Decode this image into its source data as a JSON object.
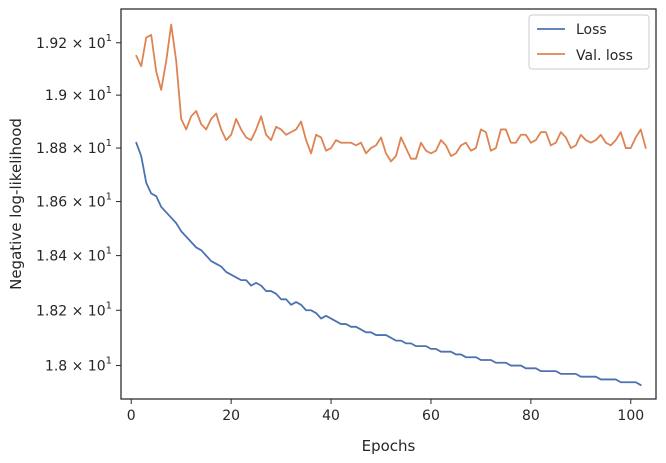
{
  "chart_data": {
    "type": "line",
    "title": "",
    "xlabel": "Epochs",
    "ylabel": "Negative log-likelihood",
    "xlim": [
      -2.05,
      105.05
    ],
    "ylim": [
      17.88,
      19.33
    ],
    "yscale": "log",
    "grid": false,
    "legend_position": "top-right",
    "x_ticks": [
      0,
      20,
      40,
      60,
      80,
      100
    ],
    "x_tick_labels": [
      "0",
      "20",
      "40",
      "60",
      "80",
      "100"
    ],
    "y_ticks": [
      18.0,
      18.2,
      18.4,
      18.6,
      18.8,
      19.0,
      19.2
    ],
    "y_tick_labels": [
      {
        "mantissa": "1.8",
        "exp": "1"
      },
      {
        "mantissa": "1.82",
        "exp": "1"
      },
      {
        "mantissa": "1.84",
        "exp": "1"
      },
      {
        "mantissa": "1.86",
        "exp": "1"
      },
      {
        "mantissa": "1.88",
        "exp": "1"
      },
      {
        "mantissa": "1.9",
        "exp": "1"
      },
      {
        "mantissa": "1.92",
        "exp": "1"
      }
    ],
    "y_tick_times": "×",
    "y_tick_base": "10",
    "series": [
      {
        "name": "Loss",
        "color": "#4c72b0",
        "x_start": 1,
        "x_step": 1,
        "values": [
          18.82,
          18.77,
          18.67,
          18.63,
          18.62,
          18.58,
          18.56,
          18.54,
          18.52,
          18.49,
          18.47,
          18.45,
          18.43,
          18.42,
          18.4,
          18.38,
          18.37,
          18.36,
          18.34,
          18.33,
          18.32,
          18.31,
          18.31,
          18.29,
          18.3,
          18.29,
          18.27,
          18.27,
          18.26,
          18.24,
          18.24,
          18.22,
          18.23,
          18.22,
          18.2,
          18.2,
          18.19,
          18.17,
          18.18,
          18.17,
          18.16,
          18.15,
          18.15,
          18.14,
          18.14,
          18.13,
          18.12,
          18.12,
          18.11,
          18.11,
          18.11,
          18.1,
          18.09,
          18.09,
          18.08,
          18.08,
          18.07,
          18.07,
          18.07,
          18.06,
          18.06,
          18.05,
          18.05,
          18.05,
          18.04,
          18.04,
          18.03,
          18.03,
          18.03,
          18.02,
          18.02,
          18.02,
          18.01,
          18.01,
          18.01,
          18,
          18,
          18,
          17.99,
          17.99,
          17.99,
          17.98,
          17.98,
          17.98,
          17.98,
          17.97,
          17.97,
          17.97,
          17.97,
          17.96,
          17.96,
          17.96,
          17.96,
          17.95,
          17.95,
          17.95,
          17.95,
          17.94,
          17.94,
          17.94,
          17.94,
          17.93
        ]
      },
      {
        "name": "Val. loss",
        "color": "#dd8452",
        "x_start": 1,
        "x_step": 1,
        "values": [
          19.15,
          19.11,
          19.22,
          19.23,
          19.09,
          19.02,
          19.13,
          19.27,
          19.13,
          18.91,
          18.87,
          18.92,
          18.94,
          18.89,
          18.87,
          18.91,
          18.93,
          18.87,
          18.83,
          18.85,
          18.91,
          18.87,
          18.84,
          18.83,
          18.87,
          18.92,
          18.85,
          18.83,
          18.88,
          18.87,
          18.85,
          18.86,
          18.87,
          18.9,
          18.83,
          18.78,
          18.85,
          18.84,
          18.79,
          18.8,
          18.83,
          18.82,
          18.82,
          18.82,
          18.81,
          18.82,
          18.78,
          18.8,
          18.81,
          18.84,
          18.78,
          18.75,
          18.77,
          18.84,
          18.8,
          18.76,
          18.76,
          18.82,
          18.79,
          18.78,
          18.79,
          18.83,
          18.81,
          18.77,
          18.78,
          18.81,
          18.82,
          18.79,
          18.8,
          18.87,
          18.86,
          18.79,
          18.8,
          18.87,
          18.87,
          18.82,
          18.82,
          18.85,
          18.85,
          18.82,
          18.83,
          18.86,
          18.86,
          18.81,
          18.82,
          18.86,
          18.84,
          18.8,
          18.81,
          18.85,
          18.83,
          18.82,
          18.83,
          18.85,
          18.82,
          18.81,
          18.83,
          18.86,
          18.8,
          18.8,
          18.84,
          18.87,
          18.8
        ]
      }
    ]
  }
}
